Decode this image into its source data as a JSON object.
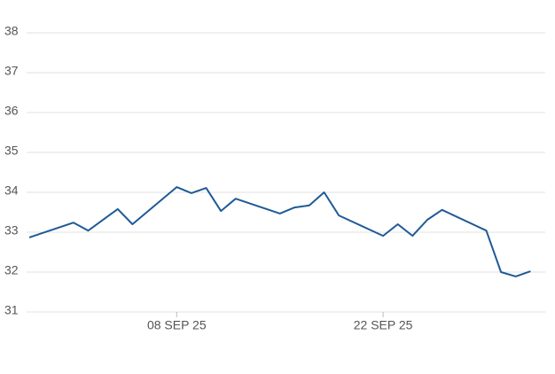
{
  "chart_data": {
    "type": "line",
    "x": [
      "2025-08-29",
      "2025-09-01",
      "2025-09-02",
      "2025-09-04",
      "2025-09-05",
      "2025-09-08",
      "2025-09-09",
      "2025-09-10",
      "2025-09-11",
      "2025-09-12",
      "2025-09-15",
      "2025-09-16",
      "2025-09-17",
      "2025-09-18",
      "2025-09-19",
      "2025-09-22",
      "2025-09-23",
      "2025-09-24",
      "2025-09-25",
      "2025-09-26",
      "2025-09-29",
      "2025-09-30",
      "2025-10-01",
      "2025-10-02"
    ],
    "series": [
      {
        "color": "#1f5a96",
        "values": [
          32.87,
          33.24,
          33.04,
          33.58,
          33.2,
          34.13,
          33.98,
          34.11,
          33.53,
          33.84,
          33.47,
          33.62,
          33.67,
          34.0,
          33.42,
          32.91,
          33.2,
          32.91,
          33.31,
          33.56,
          33.04,
          32.0,
          31.89,
          32.02
        ]
      }
    ],
    "xlim": [
      "2025-08-29",
      "2025-10-03"
    ],
    "xticks": [
      {
        "value": "2025-09-08",
        "label": "08 SEP 25"
      },
      {
        "value": "2025-09-22",
        "label": "22 SEP 25"
      }
    ],
    "ylim": [
      31,
      38
    ],
    "yticks": [
      31,
      32,
      33,
      34,
      35,
      36,
      37,
      38
    ],
    "grid": true
  }
}
